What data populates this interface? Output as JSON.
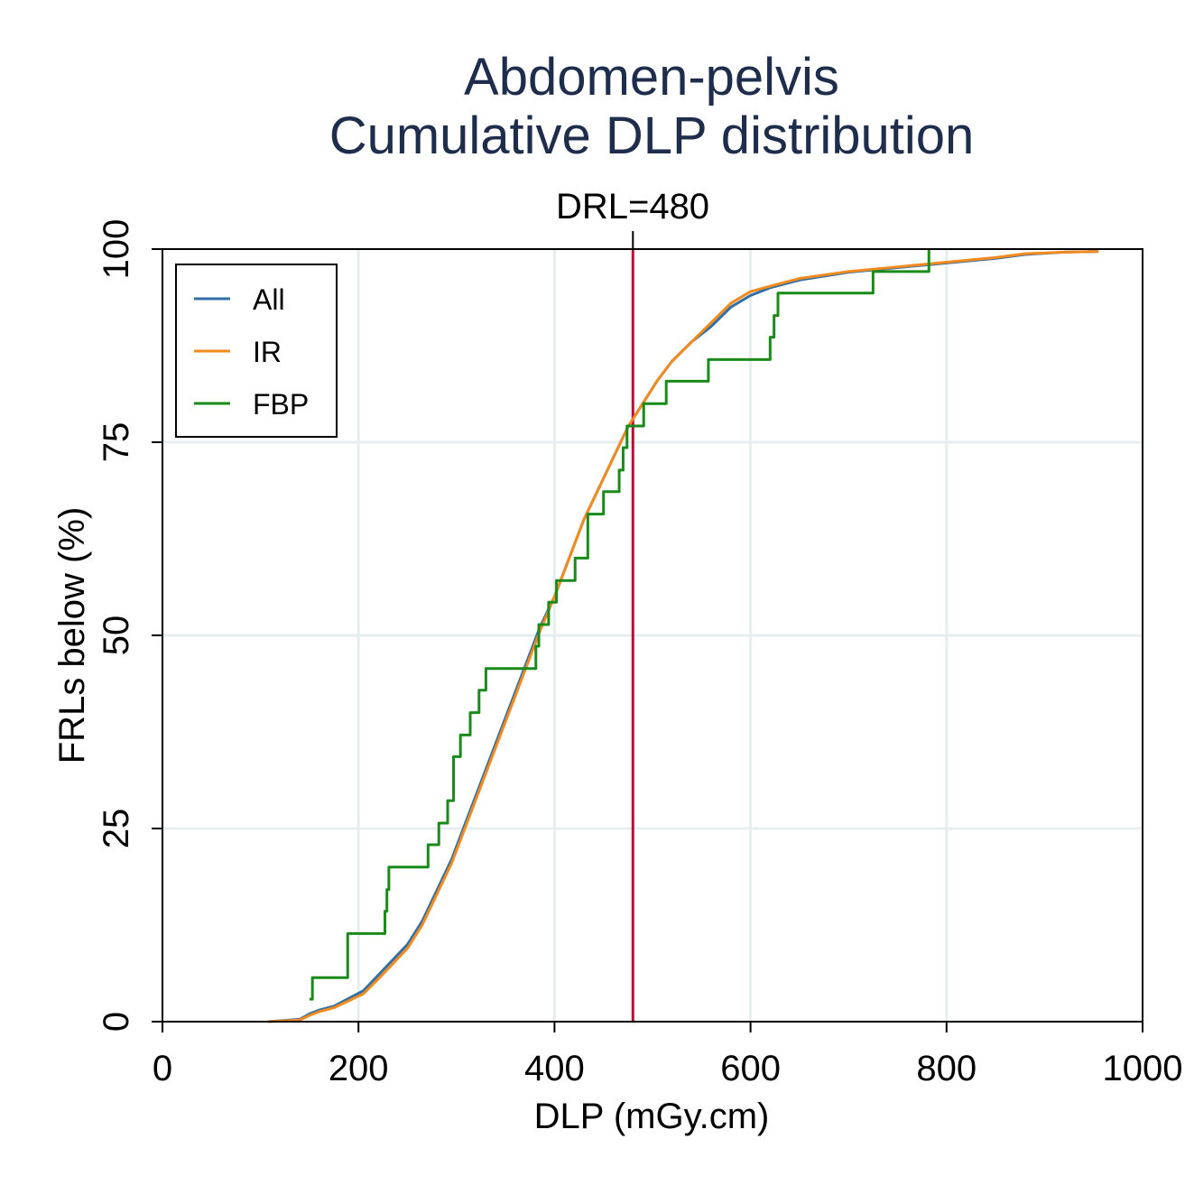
{
  "chart_data": {
    "type": "line",
    "title": "Abdomen-pelvis",
    "subtitle": "Cumulative DLP distribution",
    "xlabel": "DLP (mGy.cm)",
    "ylabel": "FRLs below (%)",
    "xlim": [
      0,
      1000
    ],
    "ylim": [
      0,
      100
    ],
    "xticks": [
      0,
      200,
      400,
      600,
      800,
      1000
    ],
    "yticks": [
      0,
      25,
      50,
      75,
      100
    ],
    "grid": true,
    "legend_position": "top-left",
    "reference_line": {
      "label": "DRL=480",
      "x": 480,
      "color": "#b0103a"
    },
    "series": [
      {
        "name": "All",
        "color": "#2f6fa8",
        "step": false,
        "x": [
          108,
          140,
          150,
          160,
          175,
          190,
          205,
          220,
          235,
          250,
          265,
          280,
          295,
          310,
          325,
          340,
          355,
          370,
          385,
          400,
          415,
          430,
          445,
          460,
          475,
          490,
          505,
          520,
          540,
          560,
          580,
          600,
          620,
          650,
          700,
          750,
          800,
          850,
          880,
          920,
          955
        ],
        "values": [
          0,
          0.3,
          1,
          1.5,
          2,
          3,
          4,
          6,
          8,
          10,
          13,
          17,
          21,
          26,
          31,
          36,
          41,
          46,
          51,
          55,
          60,
          65,
          69,
          73,
          77,
          80,
          83,
          85.5,
          88,
          90,
          92.5,
          94,
          95,
          96,
          97,
          97.6,
          98.2,
          98.8,
          99.3,
          99.6,
          99.7
        ]
      },
      {
        "name": "IR",
        "color": "#f28a1d",
        "step": false,
        "x": [
          108,
          140,
          150,
          160,
          175,
          190,
          205,
          220,
          235,
          250,
          265,
          280,
          295,
          310,
          325,
          340,
          355,
          370,
          385,
          400,
          415,
          430,
          445,
          460,
          475,
          490,
          505,
          520,
          540,
          560,
          580,
          600,
          620,
          650,
          700,
          750,
          800,
          850,
          880,
          920,
          955
        ],
        "values": [
          0,
          0.2,
          0.8,
          1.3,
          1.8,
          2.7,
          3.6,
          5.5,
          7.5,
          9.5,
          12.5,
          16.5,
          20.5,
          25.5,
          30.5,
          35.5,
          40.5,
          45.5,
          50.5,
          55,
          60,
          65,
          69,
          73,
          77,
          80,
          83,
          85.5,
          88,
          90.5,
          93,
          94.5,
          95.2,
          96.2,
          97.1,
          97.7,
          98.3,
          98.9,
          99.4,
          99.6,
          99.7
        ]
      },
      {
        "name": "FBP",
        "color": "#1a8a1a",
        "step": true,
        "x": [
          150,
          153,
          189,
          227,
          229,
          231,
          271,
          282,
          291,
          297,
          304,
          314,
          323,
          330,
          381,
          384,
          394,
          402,
          421,
          434,
          450,
          466,
          470,
          474,
          491,
          514,
          557,
          620,
          624,
          628,
          725,
          782
        ],
        "values": [
          2.9,
          5.7,
          11.4,
          14.3,
          17.1,
          20,
          22.9,
          25.7,
          28.6,
          34.3,
          37.1,
          40,
          42.9,
          45.7,
          48.6,
          51.4,
          54.3,
          57.1,
          60,
          65.7,
          68.6,
          71.4,
          74.3,
          77.1,
          80,
          82.9,
          85.7,
          88.6,
          91.4,
          94.3,
          97.1,
          100
        ]
      }
    ]
  }
}
